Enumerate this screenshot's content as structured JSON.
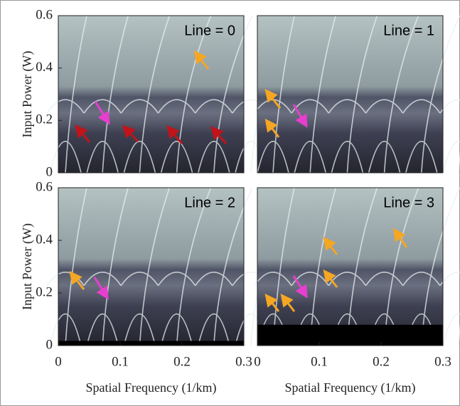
{
  "chart_data": [
    {
      "type": "image",
      "title": "Line = 0",
      "xlim": [
        0,
        0.3
      ],
      "ylim": [
        0,
        0.6
      ],
      "yticks": [
        0,
        0.2,
        0.4,
        0.6
      ],
      "ylabel": "Input Power (W)"
    },
    {
      "type": "image",
      "title": "Line = 1",
      "xlim": [
        0,
        0.3
      ],
      "ylim": [
        0,
        0.6
      ]
    },
    {
      "type": "image",
      "title": "Line = 2",
      "xlim": [
        0,
        0.3
      ],
      "ylim": [
        0,
        0.6
      ],
      "xticks": [
        0,
        0.1,
        0.2,
        0.3
      ],
      "yticks": [
        0,
        0.2,
        0.4,
        0.6
      ],
      "xlabel": "Spatial Frequency (1/km)",
      "ylabel": "Input Power (W)"
    },
    {
      "type": "image",
      "title": "Line = 3",
      "xlim": [
        0,
        0.3
      ],
      "ylim": [
        0,
        0.6
      ],
      "xticks": [
        0,
        0.1,
        0.2,
        0.3
      ],
      "xlabel": "Spatial Frequency (1/km)"
    }
  ]
}
